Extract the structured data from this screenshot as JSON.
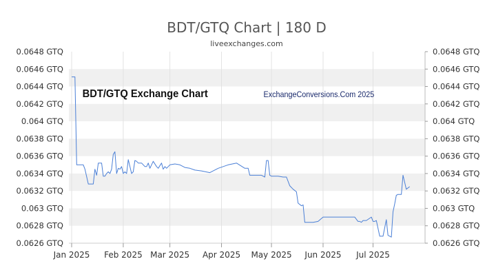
{
  "chart_data": {
    "type": "line",
    "title": "BDT/GTQ Chart | 180 D",
    "subtitle": "liveexchanges.com",
    "inner_title": "BDT/GTQ Exchange Chart",
    "watermark": "ExchangeConversions.Com 2025",
    "xlabel": "",
    "ylabel": "",
    "ylim": [
      0.0626,
      0.0648
    ],
    "y_ticks": [
      "0.0648 GTQ",
      "0.0646 GTQ",
      "0.0644 GTQ",
      "0.0642 GTQ",
      "0.064 GTQ",
      "0.0638 GTQ",
      "0.0636 GTQ",
      "0.0634 GTQ",
      "0.0632 GTQ",
      "0.063 GTQ",
      "0.0628 GTQ",
      "0.0626 GTQ"
    ],
    "y_tick_values": [
      0.0648,
      0.0646,
      0.0644,
      0.0642,
      0.064,
      0.0638,
      0.0636,
      0.0634,
      0.0632,
      0.063,
      0.0628,
      0.0626
    ],
    "x_range": [
      "2025-01-01",
      "2025-07-31"
    ],
    "x_ticks": [
      {
        "label": "Jan 2025",
        "date": "2025-01-01"
      },
      {
        "label": "Feb 2025",
        "date": "2025-02-01"
      },
      {
        "label": "Mar 2025",
        "date": "2025-03-01"
      },
      {
        "label": "Apr 2025",
        "date": "2025-04-01"
      },
      {
        "label": "May 2025",
        "date": "2025-05-01"
      },
      {
        "label": "Jun 2025",
        "date": "2025-06-01"
      },
      {
        "label": "Jul 2025",
        "date": "2025-07-01"
      }
    ],
    "grid": "horizontal bands",
    "colors": {
      "line": "#4a7fd6",
      "band": "#f0f0f0",
      "title": "#555555",
      "watermark": "#1a2a6c",
      "axis_text": "#333333"
    },
    "series": [
      {
        "x": [
          "2025-01-01",
          "2025-01-02",
          "2025-01-03",
          "2025-01-04",
          "2025-01-05",
          "2025-01-06",
          "2025-01-08",
          "2025-01-09",
          "2025-01-11",
          "2025-01-12",
          "2025-01-14",
          "2025-01-15",
          "2025-01-16",
          "2025-01-17",
          "2025-01-19",
          "2025-01-20",
          "2025-01-21",
          "2025-01-22",
          "2025-01-23",
          "2025-01-24",
          "2025-01-25",
          "2025-01-26",
          "2025-01-27",
          "2025-01-28",
          "2025-01-29",
          "2025-01-30",
          "2025-01-31",
          "2025-02-01",
          "2025-02-02",
          "2025-02-03",
          "2025-02-04",
          "2025-02-05",
          "2025-02-06",
          "2025-02-07",
          "2025-02-08",
          "2025-02-09",
          "2025-02-10",
          "2025-02-11",
          "2025-02-12",
          "2025-02-14",
          "2025-02-15",
          "2025-02-16",
          "2025-02-17",
          "2025-02-19",
          "2025-02-21",
          "2025-02-22",
          "2025-02-24",
          "2025-02-25",
          "2025-02-26",
          "2025-02-27",
          "2025-03-01",
          "2025-03-04",
          "2025-03-07",
          "2025-03-10",
          "2025-03-13",
          "2025-03-16",
          "2025-03-20",
          "2025-03-25",
          "2025-03-30",
          "2025-04-05",
          "2025-04-10",
          "2025-04-15",
          "2025-04-17",
          "2025-04-18",
          "2025-04-22",
          "2025-04-25",
          "2025-04-27",
          "2025-04-28",
          "2025-04-29",
          "2025-04-30",
          "2025-05-01",
          "2025-05-05",
          "2025-05-08",
          "2025-05-10",
          "2025-05-12",
          "2025-05-14",
          "2025-05-16",
          "2025-05-17",
          "2025-05-19",
          "2025-05-20",
          "2025-05-21",
          "2025-05-22",
          "2025-05-23",
          "2025-05-26",
          "2025-05-29",
          "2025-06-01",
          "2025-06-05",
          "2025-06-10",
          "2025-06-15",
          "2025-06-20",
          "2025-06-22",
          "2025-06-23",
          "2025-06-24",
          "2025-06-25",
          "2025-06-27",
          "2025-06-30",
          "2025-07-01",
          "2025-07-02",
          "2025-07-03",
          "2025-07-05",
          "2025-07-07",
          "2025-07-09",
          "2025-07-10",
          "2025-07-12",
          "2025-07-13",
          "2025-07-14",
          "2025-07-15",
          "2025-07-16",
          "2025-07-17",
          "2025-07-18",
          "2025-07-19",
          "2025-07-21",
          "2025-07-23"
        ],
        "y": [
          0.06451,
          0.06451,
          0.06451,
          0.0635,
          0.0635,
          0.0635,
          0.0635,
          0.06345,
          0.06328,
          0.06328,
          0.06328,
          0.06345,
          0.06338,
          0.06352,
          0.06352,
          0.06337,
          0.06337,
          0.0634,
          0.06342,
          0.0634,
          0.06345,
          0.06362,
          0.06365,
          0.0634,
          0.06346,
          0.06345,
          0.06348,
          0.0634,
          0.06342,
          0.0634,
          0.06356,
          0.06348,
          0.0634,
          0.06342,
          0.06355,
          0.06354,
          0.06352,
          0.06352,
          0.06352,
          0.06348,
          0.06348,
          0.06352,
          0.06346,
          0.06354,
          0.06348,
          0.06346,
          0.06352,
          0.06345,
          0.06348,
          0.06346,
          0.0635,
          0.06351,
          0.0635,
          0.06347,
          0.06346,
          0.06344,
          0.06343,
          0.06341,
          0.06346,
          0.0635,
          0.06352,
          0.06346,
          0.06346,
          0.06338,
          0.06338,
          0.06338,
          0.06336,
          0.06355,
          0.06355,
          0.06338,
          0.06337,
          0.06337,
          0.06336,
          0.06336,
          0.06326,
          0.06322,
          0.06319,
          0.06306,
          0.06303,
          0.06304,
          0.06284,
          0.06284,
          0.06284,
          0.06284,
          0.06285,
          0.0629,
          0.0629,
          0.0629,
          0.0629,
          0.0629,
          0.06285,
          0.06285,
          0.06284,
          0.06286,
          0.06286,
          0.0629,
          0.06285,
          0.06285,
          0.06286,
          0.06268,
          0.06268,
          0.06287,
          0.06269,
          0.06267,
          0.06296,
          0.06305,
          0.06315,
          0.06316,
          0.06316,
          0.06316,
          0.06338,
          0.06322,
          0.06325
        ]
      }
    ]
  }
}
